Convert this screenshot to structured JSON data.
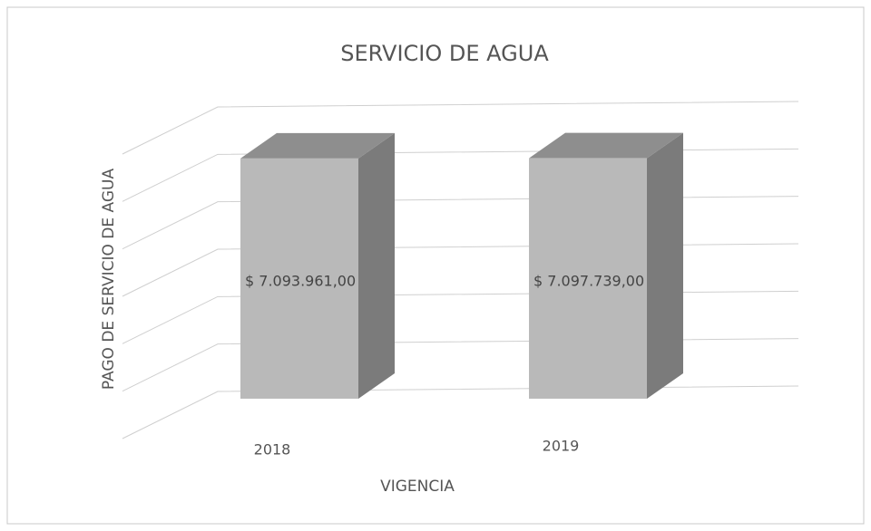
{
  "chart_data": {
    "type": "bar3d",
    "title": "SERVICIO DE AGUA",
    "x_label": "VIGENCIA",
    "y_label": "PAGO DE SERVICIO DE AGUA",
    "categories": [
      "2018",
      "2019"
    ],
    "values": [
      7093961,
      7097739
    ],
    "value_labels": [
      "$ 7.093.961,00",
      "$ 7.097.739,00"
    ],
    "color": "#b9b9b9",
    "ylim": [
      0,
      8400000
    ],
    "yticks": [
      0,
      1400000,
      2800000,
      4200000,
      5600000,
      7000000,
      8400000
    ],
    "grid": true
  }
}
